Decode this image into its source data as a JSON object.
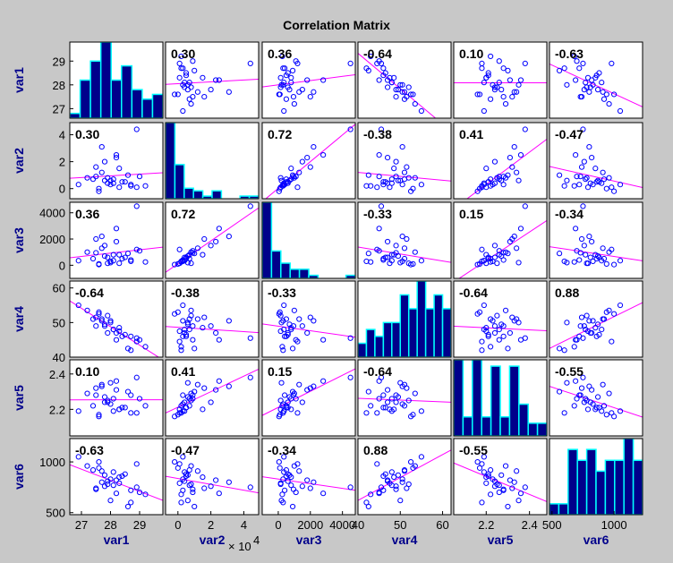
{
  "title": "Correlation Matrix",
  "x_exponent_label": "× 10",
  "x_exponent_power": "4",
  "chart_data": {
    "type": "scatter-matrix",
    "variables": [
      "var1",
      "var2",
      "var3",
      "var4",
      "var5",
      "var6"
    ],
    "ranges": {
      "var1": [
        26.6,
        29.8
      ],
      "var2": [
        -0.75,
        4.9
      ],
      "var3": [
        -1000,
        4800
      ],
      "var4": [
        40,
        62
      ],
      "var5": [
        2.05,
        2.48
      ],
      "var6": [
        480,
        1230
      ]
    },
    "x_ticks": {
      "var1": [
        {
          "v": 27,
          "t": "27"
        },
        {
          "v": 28,
          "t": "28"
        },
        {
          "v": 29,
          "t": "29"
        }
      ],
      "var2": [
        {
          "v": 0,
          "t": "0"
        },
        {
          "v": 2,
          "t": "2"
        },
        {
          "v": 4,
          "t": "4"
        }
      ],
      "var3": [
        {
          "v": 0,
          "t": "0"
        },
        {
          "v": 2000,
          "t": "2000"
        },
        {
          "v": 4000,
          "t": "4000"
        }
      ],
      "var4": [
        {
          "v": 40,
          "t": "40"
        },
        {
          "v": 50,
          "t": "50"
        },
        {
          "v": 60,
          "t": "60"
        }
      ],
      "var5": [
        {
          "v": 2.2,
          "t": "2.2"
        },
        {
          "v": 2.4,
          "t": "2.4"
        }
      ],
      "var6": [
        {
          "v": 500,
          "t": "500"
        },
        {
          "v": 1000,
          "t": "1000"
        }
      ]
    },
    "y_ticks": {
      "var1": [
        {
          "v": 27,
          "t": "27"
        },
        {
          "v": 28,
          "t": "28"
        },
        {
          "v": 29,
          "t": "29"
        }
      ],
      "var2": [
        {
          "v": 0,
          "t": "0"
        },
        {
          "v": 2,
          "t": "2"
        },
        {
          "v": 4,
          "t": "4"
        }
      ],
      "var3": [
        {
          "v": 0,
          "t": "0"
        },
        {
          "v": 2000,
          "t": "2000"
        },
        {
          "v": 4000,
          "t": "4000"
        }
      ],
      "var4": [
        {
          "v": 40,
          "t": "40"
        },
        {
          "v": 50,
          "t": "50"
        },
        {
          "v": 60,
          "t": "60"
        }
      ],
      "var5": [
        {
          "v": 2.2,
          "t": "2.2"
        },
        {
          "v": 2.4,
          "t": "2.4"
        }
      ],
      "var6": [
        {
          "v": 500,
          "t": "500"
        },
        {
          "v": 1000,
          "t": "1000"
        }
      ]
    },
    "correlations": [
      [
        "",
        "0.30",
        "0.36",
        "-0.64",
        "0.10",
        "-0.63"
      ],
      [
        "0.30",
        "",
        "0.72",
        "-0.38",
        "0.41",
        "-0.47"
      ],
      [
        "0.36",
        "0.72",
        "",
        "-0.33",
        "0.15",
        "-0.34"
      ],
      [
        "-0.64",
        "-0.38",
        "-0.33",
        "",
        "-0.64",
        "0.88"
      ],
      [
        "0.10",
        "0.41",
        "0.15",
        "-0.64",
        "",
        "-0.55"
      ],
      [
        "-0.63",
        "-0.47",
        "-0.34",
        "0.88",
        "-0.55",
        ""
      ]
    ],
    "histograms": {
      "var1": [
        1,
        8,
        12,
        16,
        8,
        11,
        6,
        4,
        5
      ],
      "var2": [
        29,
        13,
        4,
        3,
        1,
        3,
        0,
        0,
        1,
        1
      ],
      "var3": [
        25,
        9,
        5,
        3,
        3,
        1,
        0,
        0,
        0,
        1
      ],
      "var4": [
        2,
        4,
        3,
        5,
        5,
        9,
        7,
        11,
        7,
        9,
        7
      ],
      "var5": [
        12,
        3,
        12,
        3,
        11,
        3,
        11,
        5,
        2,
        2
      ],
      "var6": [
        1,
        1,
        6,
        5,
        6,
        4,
        5,
        5,
        7,
        5
      ]
    },
    "line_color": "#ff00ff",
    "marker_color": "#0000ff",
    "bar_color": "#00008b",
    "bar_edge_color": "#00ffff",
    "points": {
      "var1": [
        28.7,
        28.3,
        28.0,
        28.9,
        27.9,
        28.2,
        29.2,
        27.6,
        27.8,
        28.5,
        29.0,
        27.7,
        28.1,
        28.6,
        27.4,
        28.9,
        27.6,
        27.8,
        28.0,
        28.3,
        27.2,
        27.5,
        28.7,
        27.9,
        28.1,
        27.7,
        28.4,
        27.5,
        26.9,
        28.2
      ],
      "var2": [
        0.3,
        1.5,
        0.6,
        0.1,
        0.8,
        2.3,
        0.2,
        0.0,
        2.0,
        0.5,
        0.9,
        3.1,
        0.4,
        1.0,
        0.7,
        4.4,
        -0.2,
        0.6,
        0.3,
        0.1,
        0.8,
        1.6,
        0.2,
        0.4,
        0.7,
        1.2,
        0.5,
        0.9,
        0.3,
        2.5
      ],
      "var3": [
        400,
        800,
        200,
        1200,
        150,
        1800,
        250,
        100,
        1500,
        600,
        1100,
        2200,
        350,
        900,
        500,
        4500,
        50,
        700,
        300,
        150,
        1000,
        2000,
        300,
        600,
        800,
        1300,
        500,
        950,
        350,
        2800
      ],
      "var4": [
        46.0,
        48.5,
        50.0,
        44.5,
        52.0,
        47.0,
        43.0,
        53.0,
        49.0,
        46.5,
        45.0,
        50.5,
        48.0,
        42.5,
        51.0,
        45.5,
        52.5,
        49.5,
        50.5,
        47.5,
        53.5,
        51.5,
        42.0,
        47.0,
        48.0,
        51.0,
        46.0,
        49.0,
        55.0,
        45.0
      ],
      "var5": [
        2.28,
        2.2,
        2.35,
        2.18,
        2.25,
        2.31,
        2.22,
        2.17,
        2.24,
        2.21,
        2.26,
        2.33,
        2.19,
        2.3,
        2.22,
        2.38,
        2.16,
        2.27,
        2.23,
        2.2,
        2.29,
        2.32,
        2.18,
        2.24,
        2.26,
        2.34,
        2.21,
        2.28,
        2.19,
        2.36
      ],
      "var6": [
        720,
        850,
        620,
        980,
        780,
        820,
        680,
        940,
        760,
        880,
        700,
        800,
        900,
        560,
        920,
        750,
        1000,
        870,
        830,
        790,
        960,
        740,
        600,
        810,
        770,
        910,
        860,
        730,
        1050,
        690
      ]
    }
  }
}
